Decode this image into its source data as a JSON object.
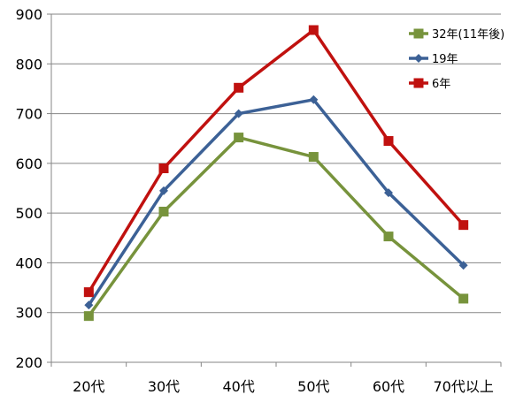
{
  "chart_data": {
    "type": "line",
    "categories": [
      "20代",
      "30代",
      "40代",
      "50代",
      "60代",
      "70代以上"
    ],
    "ylim": [
      200,
      900
    ],
    "yticks": [
      200,
      300,
      400,
      500,
      600,
      700,
      800,
      900
    ],
    "grid": true,
    "legend_position": "top-right",
    "series": [
      {
        "name": "32年(11年後)",
        "color": "#77933c",
        "marker": "square",
        "values": [
          293,
          503,
          652,
          613,
          453,
          328
        ]
      },
      {
        "name": "19年",
        "color": "#3c6196",
        "marker": "diamond",
        "values": [
          315,
          545,
          700,
          728,
          541,
          395
        ]
      },
      {
        "name": "6年",
        "color": "#c0110f",
        "marker": "square",
        "values": [
          341,
          590,
          752,
          868,
          645,
          476
        ]
      }
    ]
  }
}
